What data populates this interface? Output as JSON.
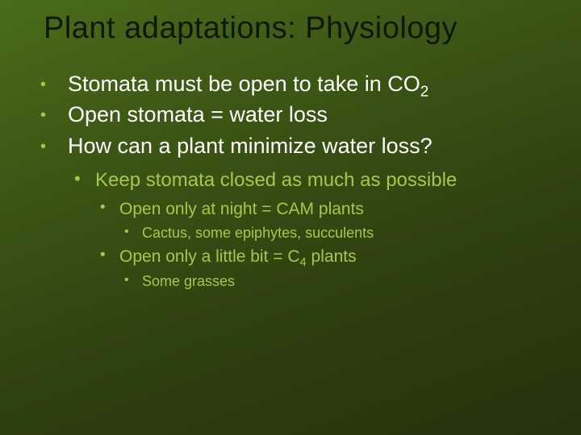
{
  "slide": {
    "title": "Plant adaptations: Physiology",
    "background_gradient": [
      "#4a6b1a",
      "#3e5a16",
      "#2f4210",
      "#24330c"
    ],
    "title_color": "#0e1806",
    "body_text_color": "#ffffff",
    "accent_color": "#a6c84a",
    "title_fontsize": 38,
    "bullets": {
      "lvl1": [
        {
          "pre": "Stomata must be open to take in CO",
          "sub": "2",
          "post": ""
        },
        {
          "text": "Open stomata = water loss"
        },
        {
          "text": "How can a plant minimize water loss?"
        }
      ],
      "lvl2": [
        {
          "text": "Keep stomata closed as much as possible"
        }
      ],
      "lvl3": [
        {
          "text": "Open only at night = CAM plants"
        },
        {
          "pre": "Open only a little bit = C",
          "sub": "4",
          "post": " plants"
        }
      ],
      "lvl4_a": [
        {
          "text": "Cactus, some epiphytes, succulents"
        }
      ],
      "lvl4_b": [
        {
          "text": "Some grasses"
        }
      ]
    }
  }
}
